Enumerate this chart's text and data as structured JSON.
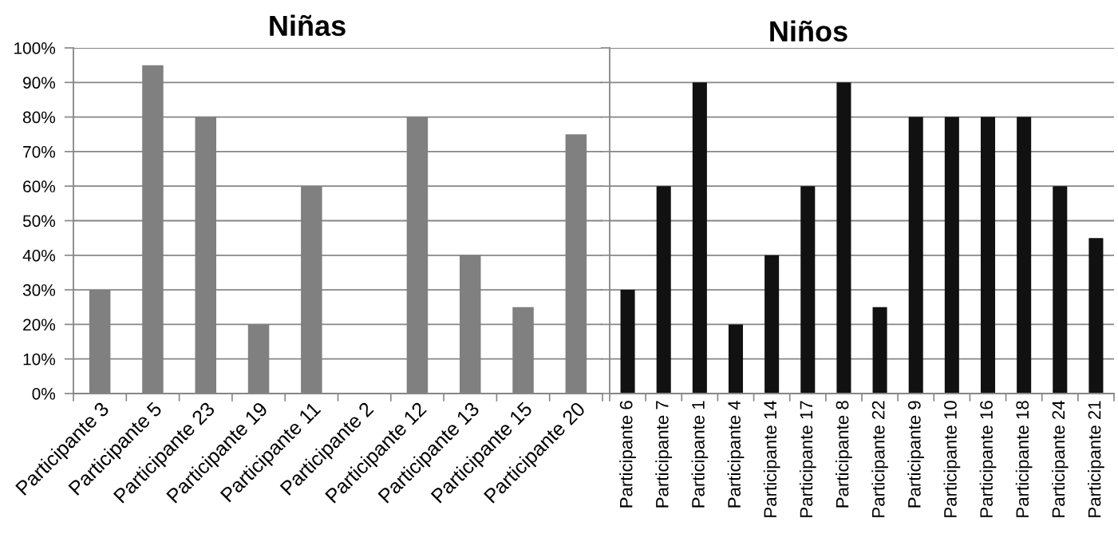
{
  "chart_data": [
    {
      "type": "bar",
      "title": "Niñas",
      "categories": [
        "Participante 3",
        "Participante 5",
        "Participante 23",
        "Participante 19",
        "Participante 11",
        "Participante 2",
        "Participante 12",
        "Participante 13",
        "Participante 15",
        "Participante 20"
      ],
      "values": [
        30,
        95,
        80,
        20,
        60,
        0,
        80,
        40,
        25,
        75
      ],
      "color": "#808080",
      "ylim": [
        0,
        100
      ],
      "yticks": [
        {
          "value": 0,
          "label": "0%"
        },
        {
          "value": 10,
          "label": "10%"
        },
        {
          "value": 20,
          "label": "20%"
        },
        {
          "value": 30,
          "label": "30%"
        },
        {
          "value": 40,
          "label": "40%"
        },
        {
          "value": 50,
          "label": "50%"
        },
        {
          "value": 60,
          "label": "60%"
        },
        {
          "value": 70,
          "label": "70%"
        },
        {
          "value": 80,
          "label": "80%"
        },
        {
          "value": 90,
          "label": "90%"
        },
        {
          "value": 100,
          "label": "100%"
        }
      ],
      "grid": "y"
    },
    {
      "type": "bar",
      "title": "Niños",
      "categories": [
        "Participante 6",
        "Participante 7",
        "Participante 1",
        "Participante 4",
        "Participante 14",
        "Participante 17",
        "Participante 8",
        "Participante 22",
        "Participante 9",
        "Participante 10",
        "Participante 16",
        "Participante 18",
        "Participante 24",
        "Participante 21"
      ],
      "values": [
        30,
        60,
        90,
        20,
        40,
        60,
        90,
        25,
        80,
        80,
        80,
        80,
        60,
        45
      ],
      "color": "#111111",
      "ylim": [
        0,
        100
      ],
      "yticks": [
        0,
        10,
        20,
        30,
        40,
        50,
        60,
        70,
        80,
        90,
        100
      ],
      "grid": "y",
      "tick_labels": "x"
    }
  ]
}
